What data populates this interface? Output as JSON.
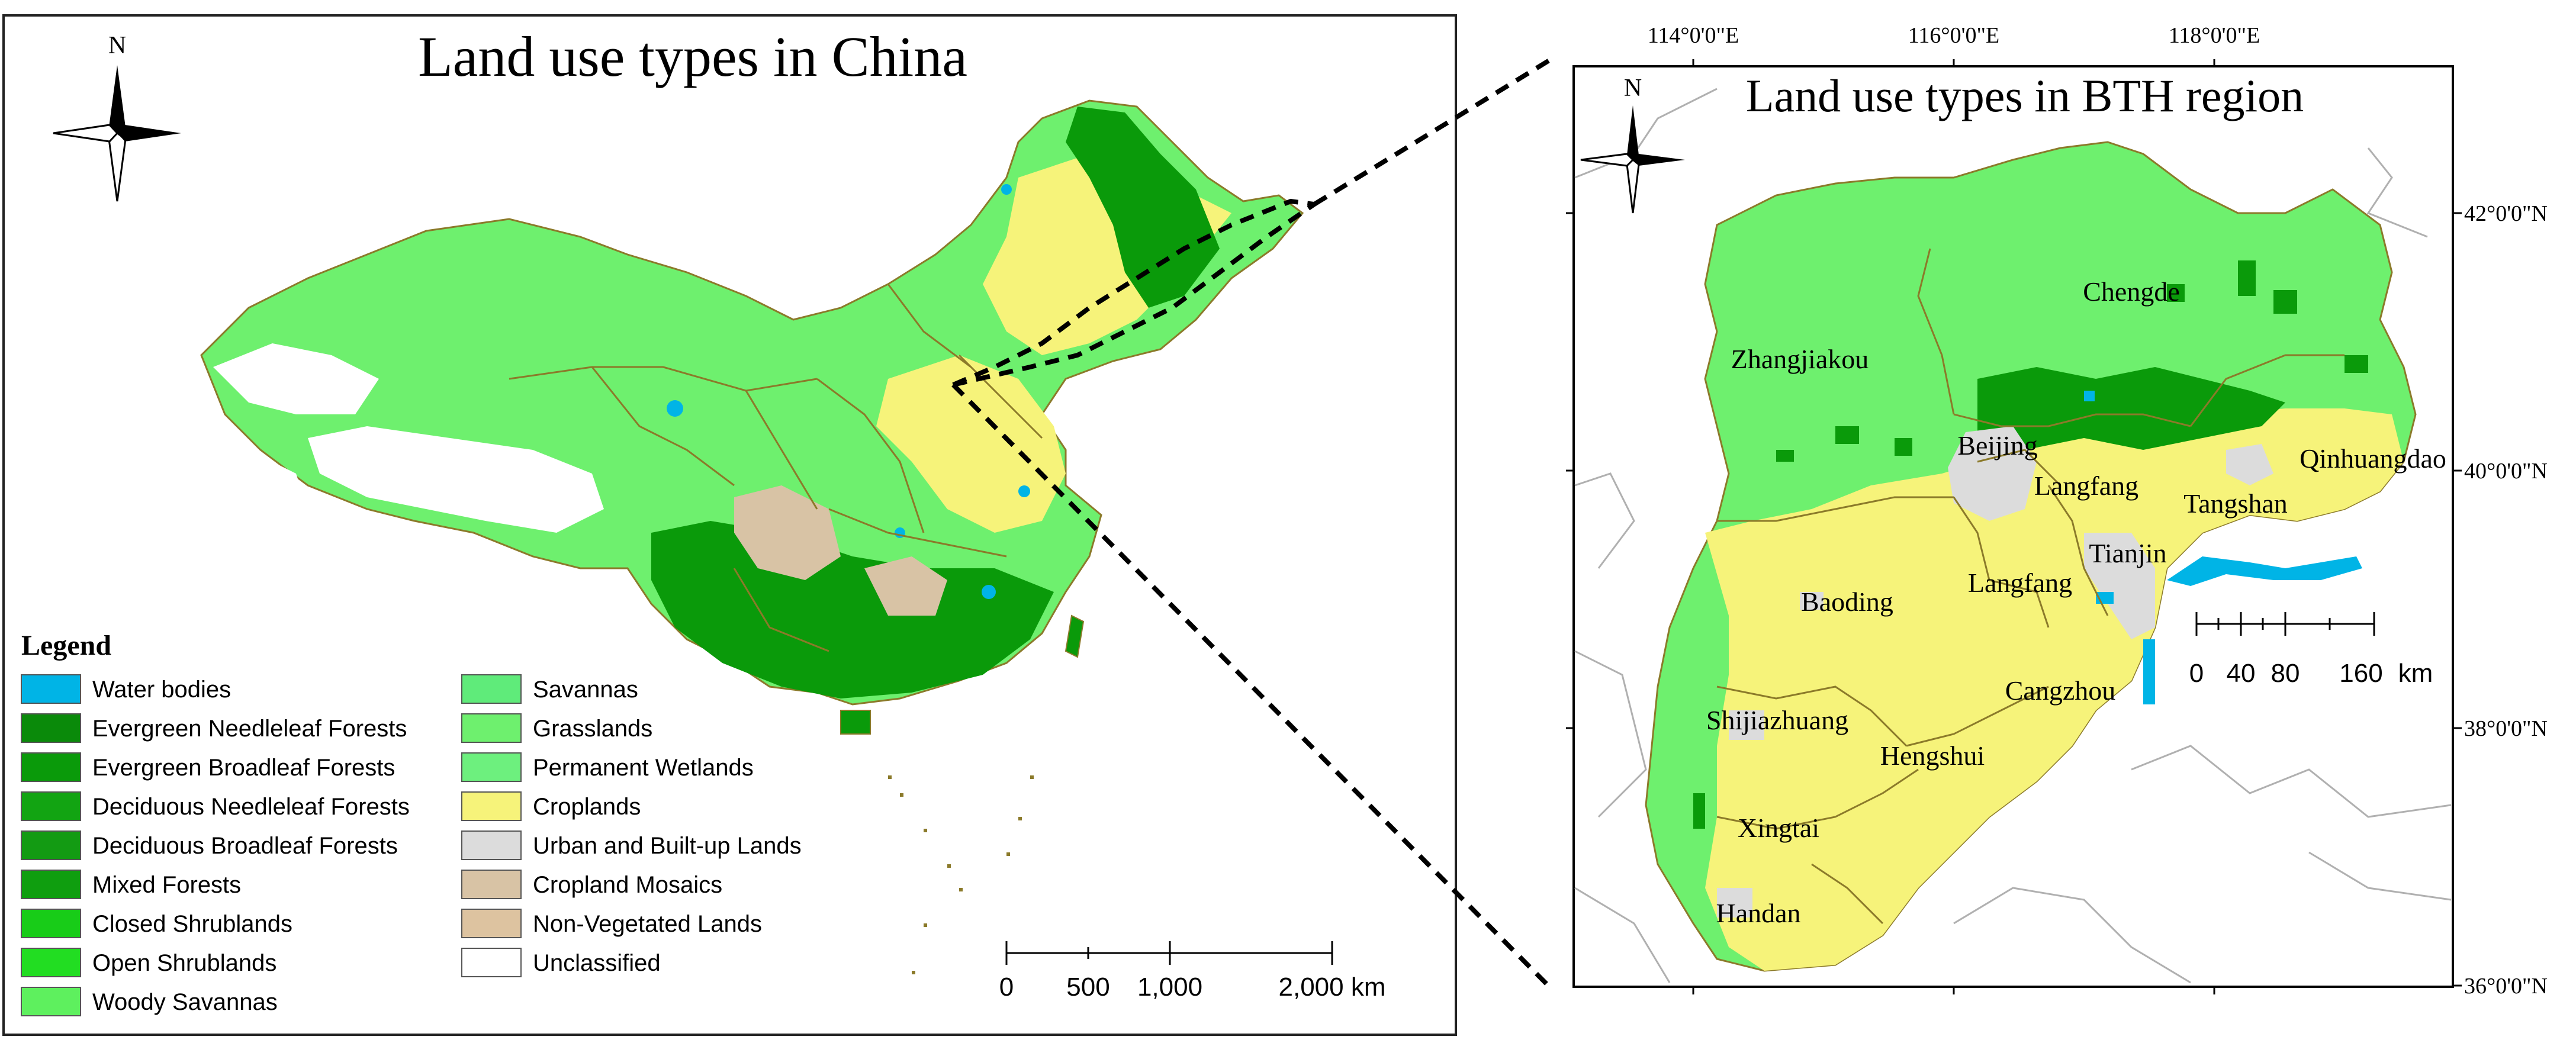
{
  "left_map": {
    "title": "Land use types in China",
    "north_label": "N",
    "legend_title": "Legend",
    "legend_items": [
      {
        "label": "Water bodies",
        "color": "#00b4e6"
      },
      {
        "label": "Evergreen Needleleaf Forests",
        "color": "#0a8a0a"
      },
      {
        "label": "Evergreen Broadleaf Forests",
        "color": "#0a9a0a"
      },
      {
        "label": "Deciduous Needleleaf Forests",
        "color": "#12a412"
      },
      {
        "label": "Deciduous Broadleaf Forests",
        "color": "#139b13"
      },
      {
        "label": "Mixed Forests",
        "color": "#0f9e0f"
      },
      {
        "label": "Closed Shrublands",
        "color": "#18cc18"
      },
      {
        "label": "Open Shrublands",
        "color": "#22dd22"
      },
      {
        "label": "Woody Savannas",
        "color": "#5ef05e"
      },
      {
        "label": "Savannas",
        "color": "#5feb7a"
      },
      {
        "label": "Grasslands",
        "color": "#6ef06e"
      },
      {
        "label": "Permanent Wetlands",
        "color": "#6df07e"
      },
      {
        "label": "Croplands",
        "color": "#f6f37a"
      },
      {
        "label": "Urban and Built-up Lands",
        "color": "#dcdcdc"
      },
      {
        "label": "Cropland Mosaics",
        "color": "#d8c3a5"
      },
      {
        "label": "Non-Vegetated Lands",
        "color": "#ddc3a0"
      },
      {
        "label": "Unclassified",
        "color": "#ffffff"
      }
    ],
    "scale": {
      "labels": [
        "0",
        "500",
        "1,000",
        "2,000 km"
      ]
    }
  },
  "right_map": {
    "title": "Land use types in BTH region",
    "north_label": "N",
    "lon_ticks": [
      "114°0'0\"E",
      "116°0'0\"E",
      "118°0'0\"E"
    ],
    "lat_ticks": [
      "42°0'0\"N",
      "40°0'0\"N",
      "38°0'0\"N",
      "36°0'0\"N"
    ],
    "cities": [
      "Zhangjiakou",
      "Chengde",
      "Beijing",
      "Qinhuangdao",
      "Langfang",
      "Tangshan",
      "Tianjin",
      "Baoding",
      "Langfang",
      "Cangzhou",
      "Shijiazhuang",
      "Hengshui",
      "Xingtai",
      "Handan"
    ],
    "scale": {
      "labels": [
        "0",
        "40",
        "80",
        "160",
        "km"
      ]
    }
  },
  "colors": {
    "grassland": "#6ef06e",
    "forest": "#0a9a0a",
    "cropland": "#f6f37a",
    "urban": "#dcdcdc",
    "water": "#00b4e6",
    "border": "#8b7a2a"
  }
}
